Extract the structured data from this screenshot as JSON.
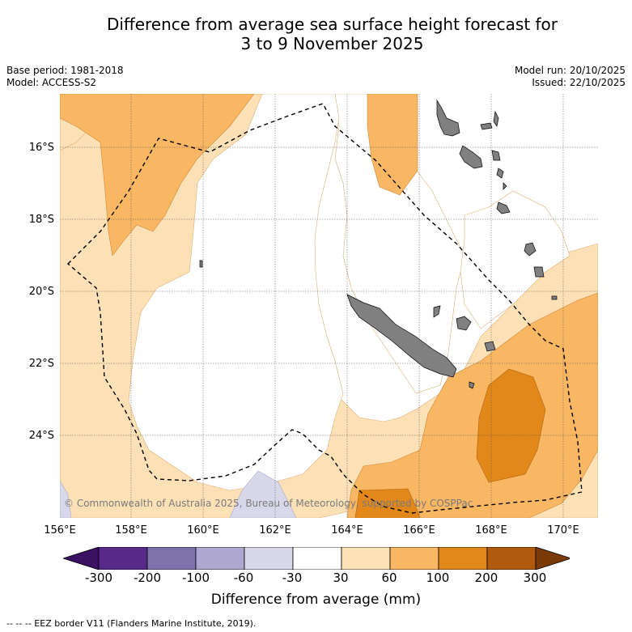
{
  "title": {
    "line1": "Difference from average sea surface height forecast for",
    "line2": "3 to 9 November 2025"
  },
  "meta_left": {
    "base_period": "Base period: 1981-2018",
    "model": "Model: ACCESS-S2"
  },
  "meta_right": {
    "model_run": "Model run: 20/10/2025",
    "issued": "Issued: 22/10/2025"
  },
  "lat_labels": [
    "16°S",
    "18°S",
    "20°S",
    "22°S",
    "24°S"
  ],
  "lon_labels": [
    "156°E",
    "158°E",
    "160°E",
    "162°E",
    "164°E",
    "166°E",
    "168°E",
    "170°E"
  ],
  "copyright": "© Commonwealth of Australia 2025, Bureau of Meteorology, supported by COSPPac",
  "colorbar": {
    "ticks": [
      "-300",
      "-200",
      "-100",
      "-60",
      "-30",
      "30",
      "60",
      "100",
      "200",
      "300"
    ],
    "colors": [
      "#3b1163",
      "#572a8a",
      "#7e72ad",
      "#aea8d0",
      "#d8d8ea",
      "#ffffff",
      "#fde1b6",
      "#f9b663",
      "#e2871a",
      "#b05a0e",
      "#7a3a08"
    ],
    "label": "Difference from average (mm)"
  },
  "footer": "--  --  -- EEZ border V11 (Flanders Marine Institute, 2019).",
  "colors": {
    "land": "#808080",
    "ocean_neutral": "#ffffff",
    "light_orange": "#fde1b6",
    "mid_orange": "#f9b663",
    "dark_orange": "#e2871a",
    "lavender": "#d8d8ea"
  }
}
